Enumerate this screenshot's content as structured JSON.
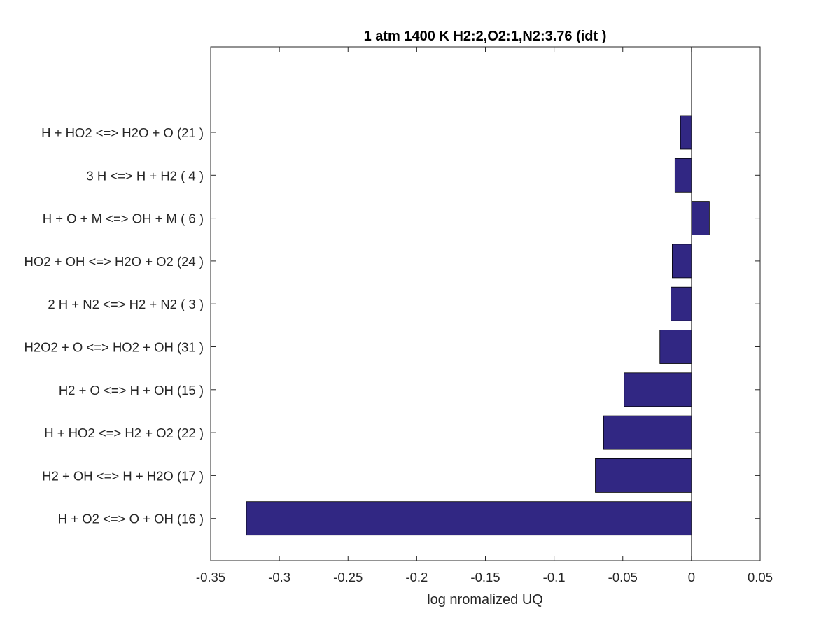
{
  "chart_data": {
    "type": "bar",
    "orientation": "horizontal",
    "title": "1 atm 1400 K H2:2,O2:1,N2:3.76 (idt )",
    "xlabel": "log nromalized UQ",
    "ylabel": "",
    "xlim": [
      -0.35,
      0.05
    ],
    "xticks": [
      -0.35,
      -0.3,
      -0.25,
      -0.2,
      -0.15,
      -0.1,
      -0.05,
      0,
      0.05
    ],
    "xtick_labels": [
      "-0.35",
      "-0.3",
      "-0.25",
      "-0.2",
      "-0.15",
      "-0.1",
      "-0.05",
      "0",
      "0.05"
    ],
    "categories": [
      "H + HO2 <=> H2O + O (21 )",
      "3 H <=> H + H2 ( 4 )",
      "H + O + M <=> OH + M ( 6 )",
      "HO2 + OH <=> H2O + O2 (24 )",
      "2 H + N2 <=> H2 + N2 ( 3 )",
      "H2O2 + O <=> HO2 + OH (31 )",
      "H2 + O <=> H + OH (15 )",
      "H + HO2 <=> H2 + O2 (22 )",
      "H2 + OH <=> H + H2O (17 )",
      "H + O2 <=> O + OH (16 )"
    ],
    "values": [
      -0.008,
      -0.012,
      0.013,
      -0.014,
      -0.015,
      -0.023,
      -0.049,
      -0.064,
      -0.07,
      -0.324
    ],
    "bar_color": "#312783",
    "grid": false,
    "legend": "none"
  }
}
